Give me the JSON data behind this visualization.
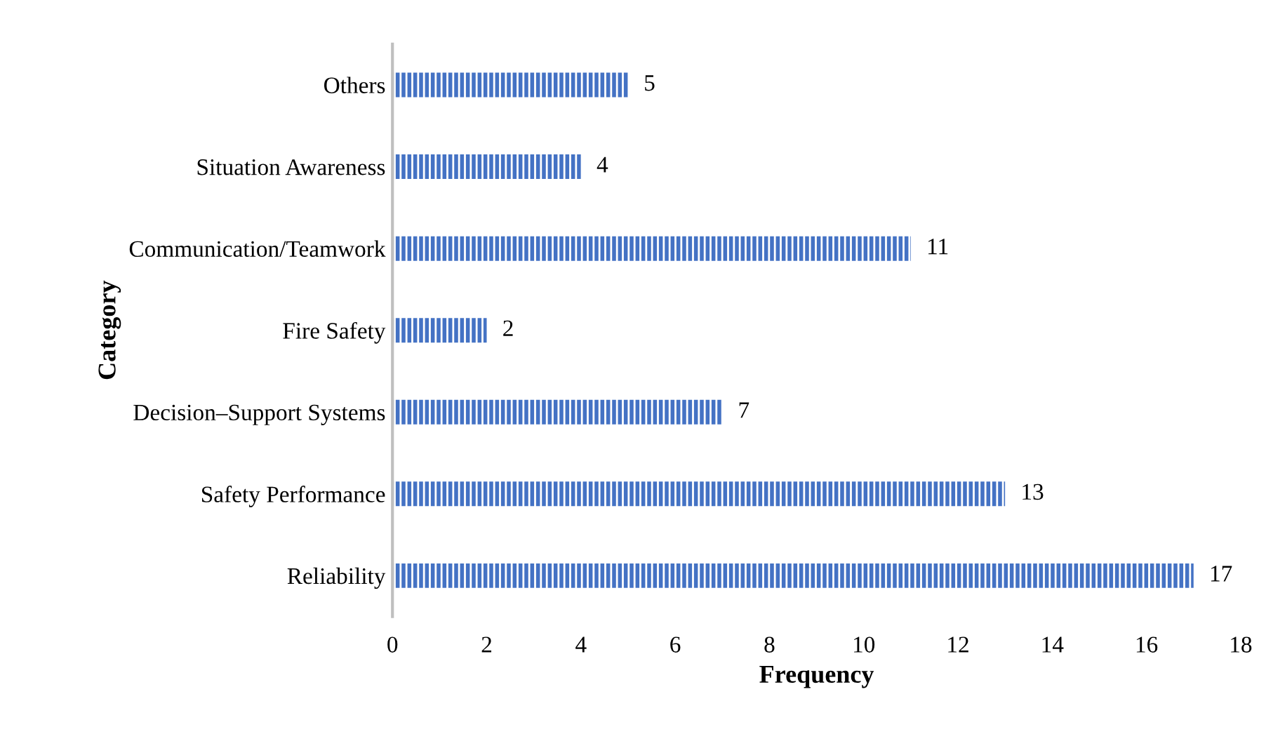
{
  "chart_data": {
    "type": "bar",
    "orientation": "horizontal",
    "xlabel": "Frequency",
    "ylabel": "Category",
    "categories": [
      "Others",
      "Situation Awareness",
      "Communication/Teamwork",
      "Fire Safety",
      "Decision–Support Systems",
      "Safety Performance",
      "Reliability"
    ],
    "values": [
      5,
      4,
      11,
      2,
      7,
      13,
      17
    ],
    "color": "#4472c4",
    "xlim": [
      0,
      18
    ],
    "xticks": [
      0,
      2,
      4,
      6,
      8,
      10,
      12,
      14,
      16,
      18
    ],
    "grid": false,
    "legend": false,
    "data_labels": true
  }
}
